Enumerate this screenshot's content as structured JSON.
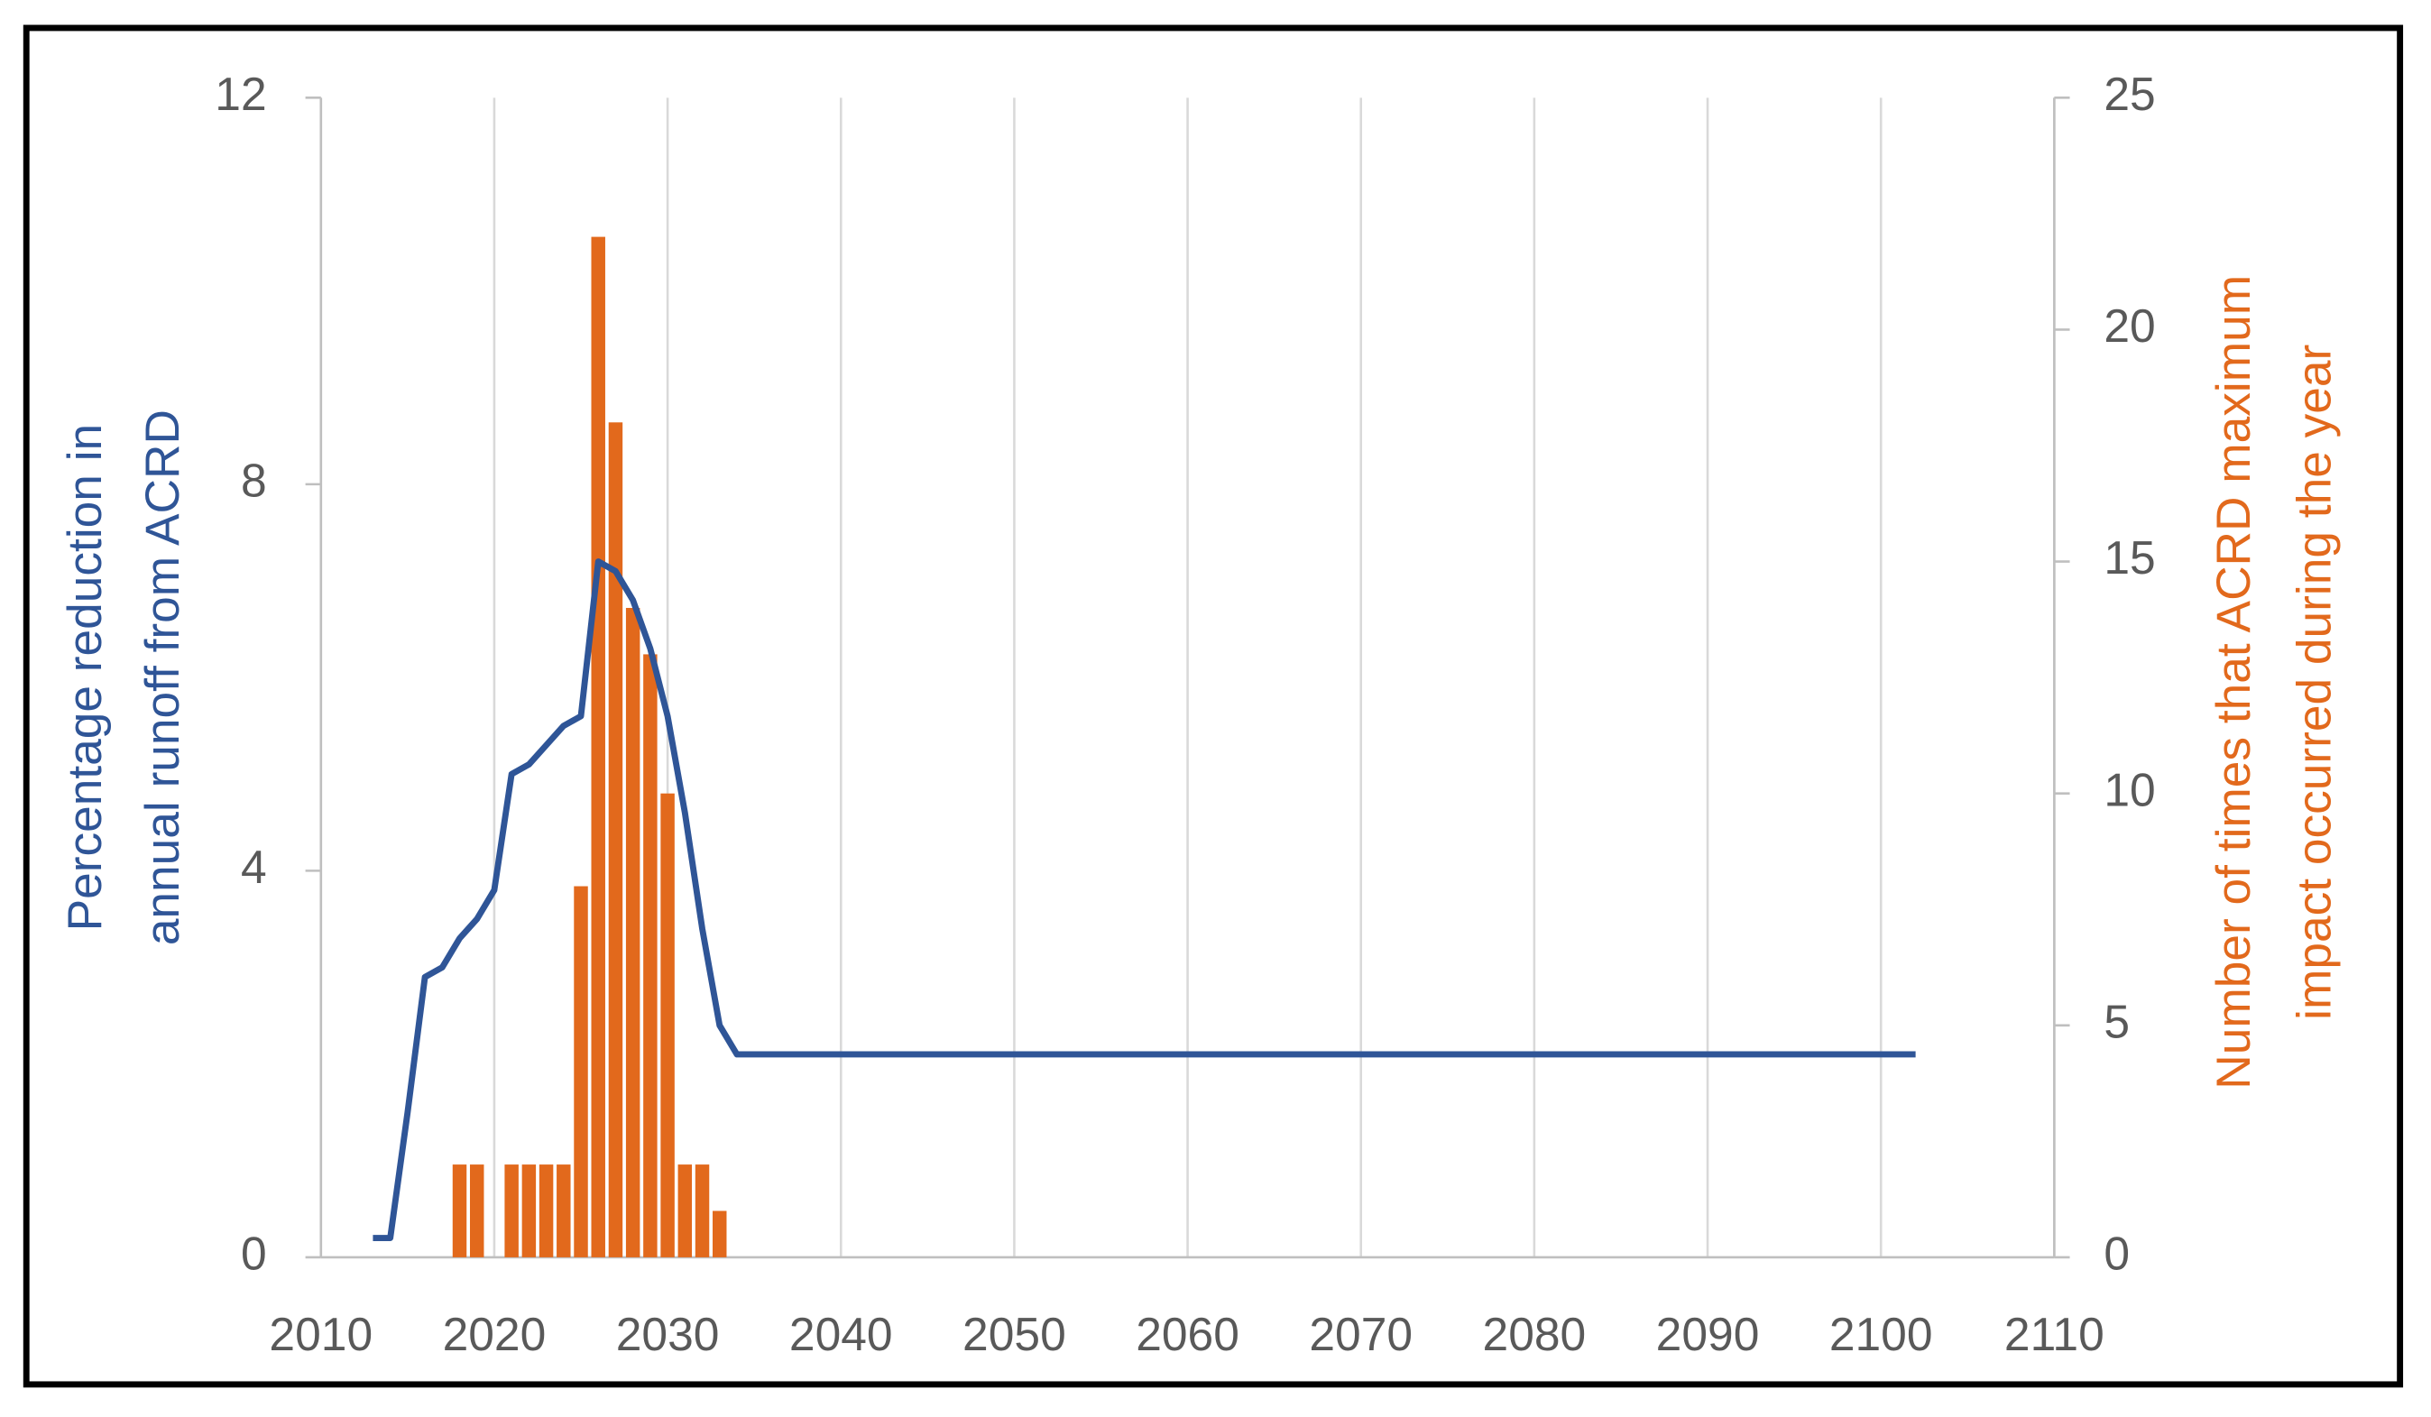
{
  "chart_data": {
    "type": "bar-line",
    "y_label": [
      "Percentage reduction in",
      "annual runoff from ACRD"
    ],
    "y2_label": [
      "Number of times that ACRD maximum",
      "impact occurred during the year"
    ],
    "xlim": [
      2010,
      2110
    ],
    "xticks": [
      2010,
      2020,
      2030,
      2040,
      2050,
      2060,
      2070,
      2080,
      2090,
      2100,
      2110
    ],
    "ylim": [
      0,
      12
    ],
    "yticks": [
      0,
      4,
      8,
      12
    ],
    "y2lim": [
      0,
      25
    ],
    "y2ticks": [
      0,
      5,
      10,
      15,
      20,
      25
    ],
    "grid": true,
    "series": [
      {
        "type": "bar",
        "axis": "y2",
        "color": "#e2691c",
        "x": [
          2018,
          2019,
          2021,
          2022,
          2023,
          2024,
          2025,
          2026,
          2027,
          2028,
          2029,
          2030,
          2031,
          2032,
          2033
        ],
        "values": [
          2,
          2,
          2,
          2,
          2,
          2,
          8,
          22,
          18,
          14,
          13,
          10,
          2,
          2,
          1
        ]
      },
      {
        "type": "line",
        "color": "#2f5597",
        "x": [
          2013,
          2014,
          2015,
          2016,
          2017,
          2018,
          2019,
          2020,
          2021,
          2022,
          2023,
          2024,
          2025,
          2026,
          2027,
          2028,
          2029,
          2030,
          2031,
          2032,
          2033,
          2034,
          2035,
          2102
        ],
        "values": [
          0.2,
          0.2,
          1.5,
          2.9,
          3.0,
          3.3,
          3.5,
          3.8,
          5.0,
          5.1,
          5.3,
          5.5,
          5.6,
          7.2,
          7.1,
          6.8,
          6.3,
          5.6,
          4.6,
          3.4,
          2.4,
          2.1,
          2.1,
          2.1
        ]
      }
    ]
  }
}
